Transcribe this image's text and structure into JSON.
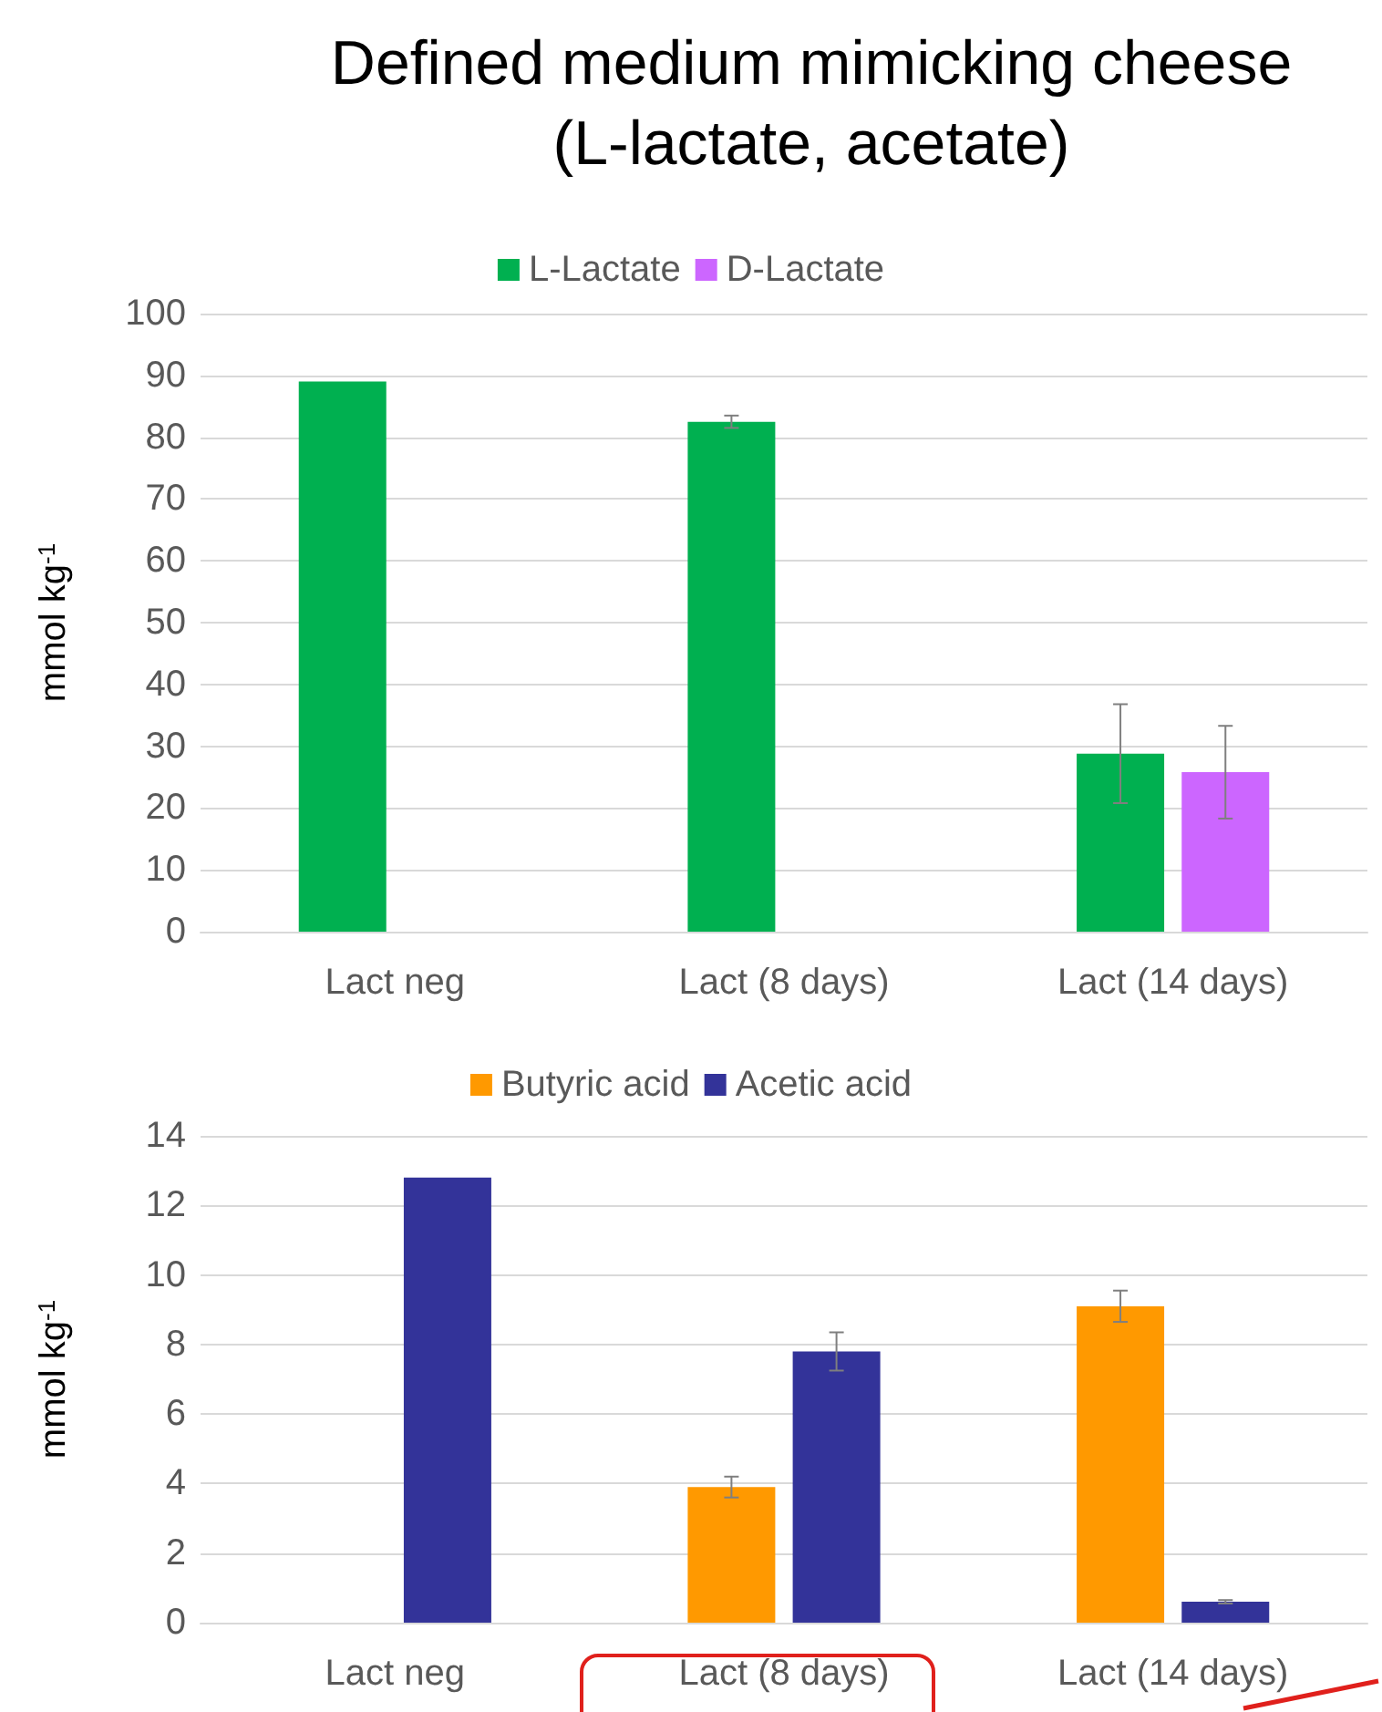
{
  "chart_data": [
    {
      "type": "bar",
      "title": "Defined medium mimicking cheese\n(L-lactate, acetate)",
      "ylabel": "mmol kg$^{-1}$",
      "categories": [
        "Lact neg",
        "Lact (8 days)",
        "Lact (14 days)"
      ],
      "series": [
        {
          "name": "L-Lactate",
          "color": "#00b050",
          "values": [
            89,
            82.5,
            28.8
          ],
          "errors": [
            null,
            1,
            8
          ]
        },
        {
          "name": "D-Lactate",
          "color": "#cc66ff",
          "values": [
            null,
            null,
            25.8
          ],
          "errors": [
            null,
            null,
            7.5
          ]
        }
      ],
      "ylim": [
        0,
        100
      ],
      "yticks": [
        0,
        10,
        20,
        30,
        40,
        50,
        60,
        70,
        80,
        90,
        100
      ],
      "grid": "y",
      "legend": "top"
    },
    {
      "type": "bar",
      "ylabel": "mmol kg$^{-1}$",
      "categories": [
        "Lact neg",
        "Lact (8 days)",
        "Lact (14 days)"
      ],
      "series": [
        {
          "name": "Butyric acid",
          "color": "#ff9900",
          "values": [
            null,
            3.9,
            9.1
          ],
          "errors": [
            null,
            0.3,
            0.45
          ]
        },
        {
          "name": "Acetic acid",
          "color": "#333399",
          "values": [
            12.8,
            7.8,
            0.6
          ],
          "errors": [
            null,
            0.55,
            0.05
          ]
        }
      ],
      "ylim": [
        0,
        14
      ],
      "yticks": [
        0,
        2,
        4,
        6,
        8,
        10,
        12,
        14
      ],
      "grid": "y",
      "legend": "top"
    }
  ]
}
